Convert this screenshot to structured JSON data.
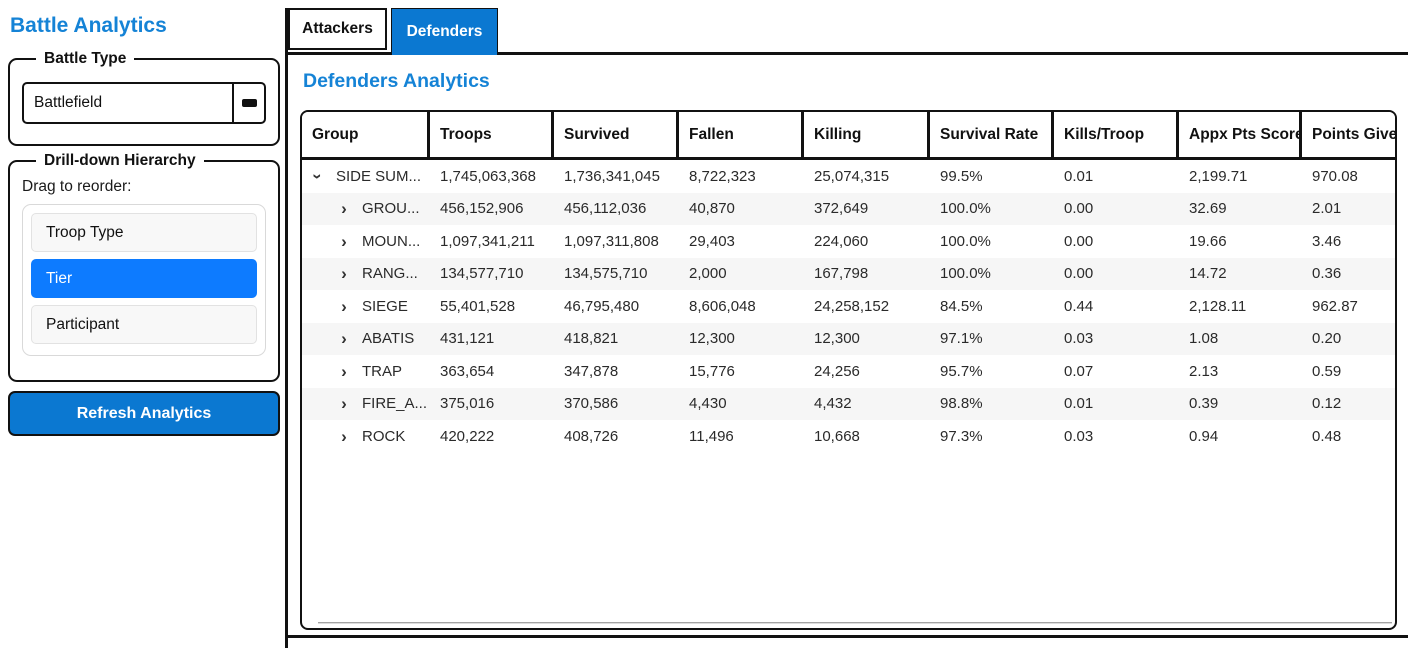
{
  "app": {
    "title": "Battle Analytics"
  },
  "colors": {
    "accent_blue": "#0b78d1",
    "heading_blue": "#1583d6",
    "selection_blue": "#0d7bff",
    "row_alt": "#f6f6f6"
  },
  "sidebar": {
    "battle_type": {
      "legend": "Battle Type",
      "selected_value": "Battlefield",
      "dropdown_icon": "dash-glyph"
    },
    "hierarchy": {
      "legend": "Drill-down Hierarchy",
      "hint": "Drag to reorder:",
      "items": [
        {
          "label": "Troop Type",
          "selected": false
        },
        {
          "label": "Tier",
          "selected": true
        },
        {
          "label": "Participant",
          "selected": false
        }
      ]
    },
    "refresh_label": "Refresh Analytics"
  },
  "tabs": [
    {
      "label": "Attackers",
      "active": false
    },
    {
      "label": "Defenders",
      "active": true
    }
  ],
  "main": {
    "heading": "Defenders Analytics",
    "table": {
      "columns": [
        "Group",
        "Troops",
        "Survived",
        "Fallen",
        "Killing",
        "Survival Rate",
        "Kills/Troop",
        "Appx Pts Score",
        "Points Given"
      ],
      "rows": [
        {
          "group": "SIDE SUM...",
          "level": 0,
          "expanded": true,
          "cells": [
            "1,745,063,368",
            "1,736,341,045",
            "8,722,323",
            "25,074,315",
            "99.5%",
            "0.01",
            "2,199.71",
            "970.08"
          ]
        },
        {
          "group": "GROU...",
          "level": 1,
          "expanded": false,
          "cells": [
            "456,152,906",
            "456,112,036",
            "40,870",
            "372,649",
            "100.0%",
            "0.00",
            "32.69",
            "2.01"
          ]
        },
        {
          "group": "MOUN...",
          "level": 1,
          "expanded": false,
          "cells": [
            "1,097,341,211",
            "1,097,311,808",
            "29,403",
            "224,060",
            "100.0%",
            "0.00",
            "19.66",
            "3.46"
          ]
        },
        {
          "group": "RANG...",
          "level": 1,
          "expanded": false,
          "cells": [
            "134,577,710",
            "134,575,710",
            "2,000",
            "167,798",
            "100.0%",
            "0.00",
            "14.72",
            "0.36"
          ]
        },
        {
          "group": "SIEGE",
          "level": 1,
          "expanded": false,
          "cells": [
            "55,401,528",
            "46,795,480",
            "8,606,048",
            "24,258,152",
            "84.5%",
            "0.44",
            "2,128.11",
            "962.87"
          ]
        },
        {
          "group": "ABATIS",
          "level": 1,
          "expanded": false,
          "cells": [
            "431,121",
            "418,821",
            "12,300",
            "12,300",
            "97.1%",
            "0.03",
            "1.08",
            "0.20"
          ]
        },
        {
          "group": "TRAP",
          "level": 1,
          "expanded": false,
          "cells": [
            "363,654",
            "347,878",
            "15,776",
            "24,256",
            "95.7%",
            "0.07",
            "2.13",
            "0.59"
          ]
        },
        {
          "group": "FIRE_A...",
          "level": 1,
          "expanded": false,
          "cells": [
            "375,016",
            "370,586",
            "4,430",
            "4,432",
            "98.8%",
            "0.01",
            "0.39",
            "0.12"
          ]
        },
        {
          "group": "ROCK",
          "level": 1,
          "expanded": false,
          "cells": [
            "420,222",
            "408,726",
            "11,496",
            "10,668",
            "97.3%",
            "0.03",
            "0.94",
            "0.48"
          ]
        }
      ]
    }
  }
}
